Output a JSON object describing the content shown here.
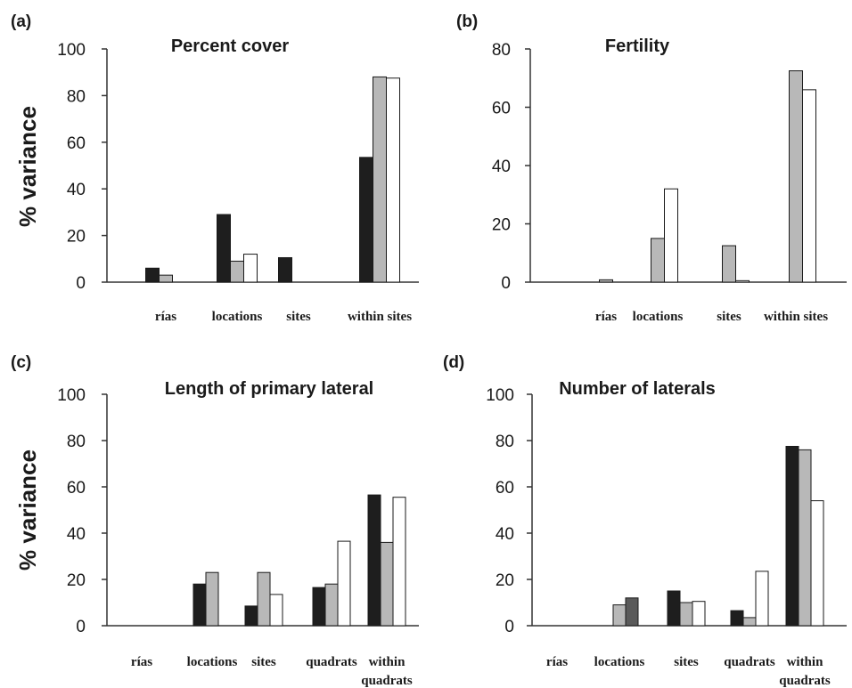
{
  "colors": {
    "bar_fills": [
      "#1e1e1e",
      "#b8b8b8",
      "#ffffff"
    ],
    "bar_fill_dark_grey": "#5a5a5a",
    "stroke": "#1a1a1a",
    "axis": "#333333"
  },
  "chart_data": [
    {
      "panel_label": "(a)",
      "type": "bar",
      "title": "Percent cover",
      "ylabel": "% variance",
      "xlabel": "",
      "ylim": [
        0,
        100
      ],
      "yticks": [
        "0",
        "20",
        "40",
        "60",
        "80",
        "100"
      ],
      "categories": [
        "rías",
        "locations",
        "sites",
        "within sites"
      ],
      "series": [
        {
          "values": [
            6,
            29,
            10.5,
            53.5
          ]
        },
        {
          "values": [
            3,
            9,
            0,
            88
          ]
        },
        {
          "values": [
            0,
            12,
            0,
            87.5
          ]
        }
      ]
    },
    {
      "panel_label": "(b)",
      "type": "bar",
      "title": "Fertility",
      "ylabel": "",
      "xlabel": "",
      "ylim": [
        0,
        80
      ],
      "yticks": [
        "0",
        "20",
        "40",
        "60",
        "80"
      ],
      "categories": [
        "rías",
        "locations",
        "sites",
        "within sites"
      ],
      "series": [
        {
          "values": [
            0,
            0,
            0,
            0
          ]
        },
        {
          "values": [
            0.8,
            15,
            12.5,
            72.5
          ]
        },
        {
          "values": [
            0,
            32,
            0.5,
            66
          ]
        }
      ]
    },
    {
      "panel_label": "(c)",
      "type": "bar",
      "title": "Length of primary lateral",
      "ylabel": "% variance",
      "xlabel": "",
      "ylim": [
        0,
        100
      ],
      "yticks": [
        "0",
        "20",
        "40",
        "60",
        "80",
        "100"
      ],
      "categories": [
        "rías",
        "locations",
        "sites",
        "quadrats",
        "within\nquadrats"
      ],
      "series": [
        {
          "values": [
            0,
            18,
            8.5,
            16.5,
            56.5
          ]
        },
        {
          "values": [
            0,
            23,
            23,
            18,
            36
          ]
        },
        {
          "values": [
            0,
            0,
            13.5,
            36.5,
            55.5
          ]
        }
      ]
    },
    {
      "panel_label": "(d)",
      "type": "bar",
      "title": "Number of laterals",
      "ylabel": "",
      "xlabel": "",
      "ylim": [
        0,
        100
      ],
      "yticks": [
        "0",
        "20",
        "40",
        "60",
        "80",
        "100"
      ],
      "categories": [
        "rías",
        "locations",
        "sites",
        "quadrats",
        "within\nquadrats"
      ],
      "series": [
        {
          "values": [
            0,
            0,
            15,
            6.5,
            77.5
          ]
        },
        {
          "values": [
            0,
            9,
            10,
            3.5,
            76
          ]
        },
        {
          "values": [
            0,
            12,
            10.5,
            23.5,
            54
          ]
        }
      ],
      "special_fills": [
        {
          "series": 2,
          "category": 1,
          "fill": "#5a5a5a"
        }
      ]
    }
  ]
}
